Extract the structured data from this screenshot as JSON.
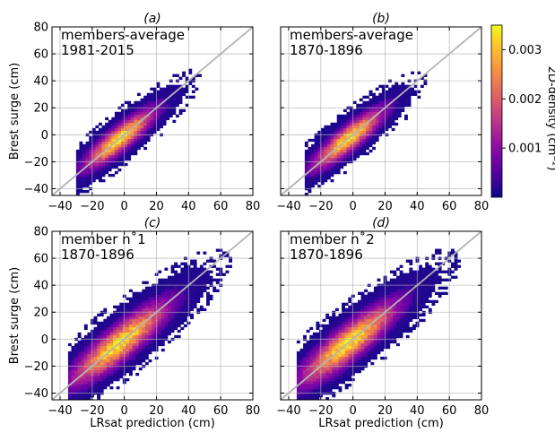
{
  "chart_data": {
    "type": "heatmap",
    "colormap": "plasma",
    "grid": true,
    "identity_line": true,
    "xlabel": "LRsat prediction (cm)",
    "ylabel": "Brest surge (cm)",
    "xlim": [
      -45,
      80
    ],
    "ylim": [
      -45,
      80
    ],
    "x_ticks": [
      "−40",
      "−20",
      "0",
      "20",
      "40",
      "60",
      "80"
    ],
    "y_ticks": [
      "−40",
      "−20",
      "0",
      "20",
      "40",
      "60",
      "80"
    ],
    "colorbar": {
      "label": "2D-density (cm⁻²)",
      "min": 0.0,
      "max": 0.0035,
      "ticks": [
        {
          "value": 0.001,
          "label": "0.001"
        },
        {
          "value": 0.002,
          "label": "0.002"
        },
        {
          "value": 0.003,
          "label": "0.003"
        }
      ]
    },
    "panels": [
      {
        "id": "a",
        "title": "(a)",
        "label_line1": "members-average",
        "label_line2": "1981-2015",
        "x_range": [
          -30,
          60
        ],
        "y_range": [
          -45,
          75
        ],
        "spread": 0.9,
        "seed": 11
      },
      {
        "id": "b",
        "title": "(b)",
        "label_line1": "members-average",
        "label_line2": "1870-1896",
        "x_range": [
          -30,
          55
        ],
        "y_range": [
          -45,
          75
        ],
        "spread": 0.9,
        "seed": 23
      },
      {
        "id": "c",
        "title": "(c)",
        "label_line1": "member n˚1",
        "label_line2": "1870-1896",
        "x_range": [
          -35,
          75
        ],
        "y_range": [
          -45,
          80
        ],
        "spread": 1.25,
        "seed": 37
      },
      {
        "id": "d",
        "title": "(d)",
        "label_line1": "member n˚2",
        "label_line2": "1870-1896",
        "x_range": [
          -35,
          75
        ],
        "y_range": [
          -45,
          80
        ],
        "spread": 1.25,
        "seed": 51
      }
    ]
  }
}
